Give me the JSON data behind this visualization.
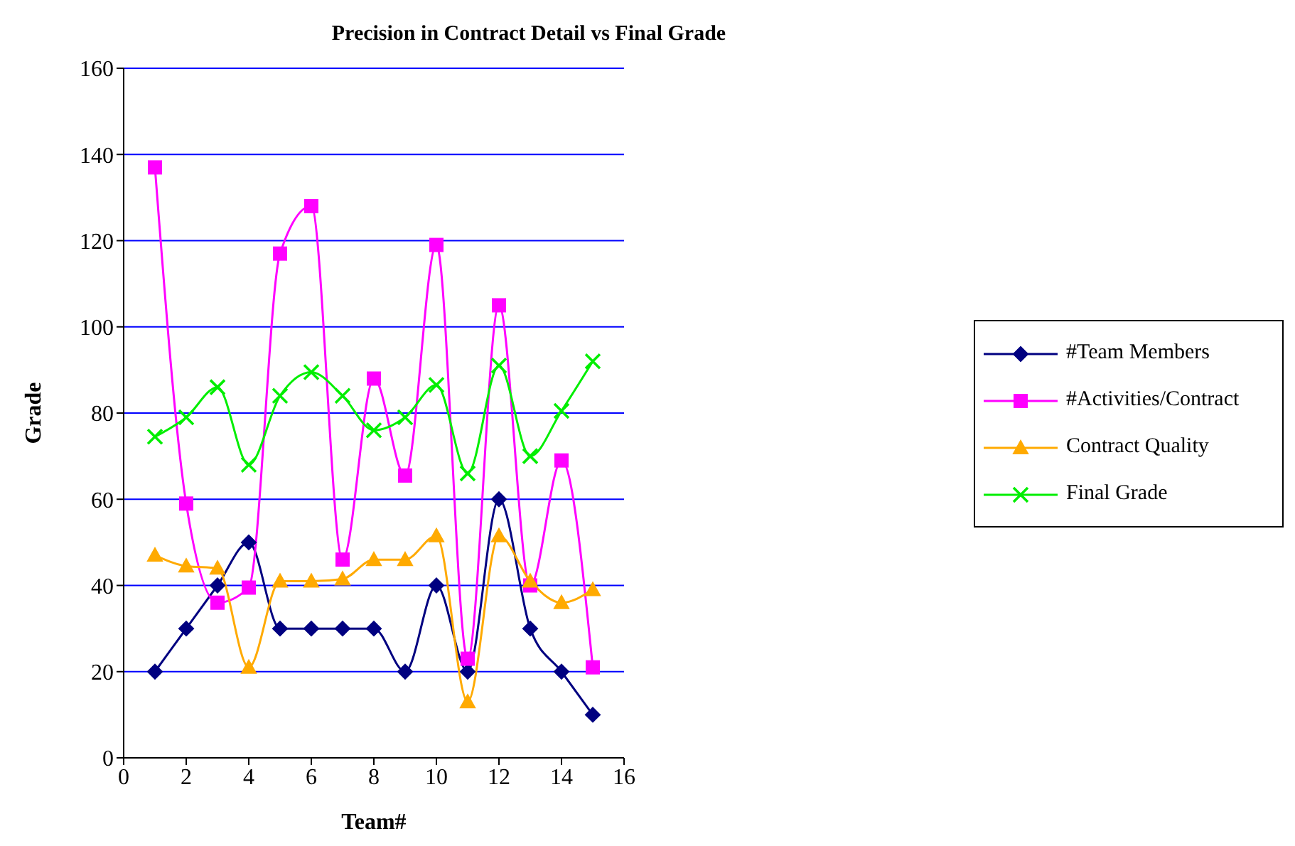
{
  "chart_data": {
    "type": "line",
    "title": "Precision in Contract Detail vs Final Grade",
    "xlabel": "Team#",
    "ylabel": "Grade",
    "x": [
      1,
      2,
      3,
      4,
      5,
      6,
      7,
      8,
      9,
      10,
      11,
      12,
      13,
      14,
      15
    ],
    "xlim": [
      0,
      16
    ],
    "xticks": [
      0,
      2,
      4,
      6,
      8,
      10,
      12,
      14,
      16
    ],
    "ylim": [
      0,
      160
    ],
    "yticks": [
      0,
      20,
      40,
      60,
      80,
      100,
      120,
      140,
      160
    ],
    "grid": "y",
    "legend": "right",
    "series": [
      {
        "name": "#Team Members",
        "color": "#000080",
        "marker": "diamond",
        "values": [
          20,
          30,
          40,
          50,
          30,
          30,
          30,
          30,
          20,
          40,
          20,
          60,
          30,
          20,
          10
        ]
      },
      {
        "name": "#Activities/Contract",
        "color": "#ff00ff",
        "marker": "square",
        "values": [
          137,
          59,
          36,
          39.5,
          117,
          128,
          46,
          88,
          65.5,
          119,
          23,
          105,
          40,
          69,
          21
        ]
      },
      {
        "name": "Contract Quality",
        "color": "#ffaa00",
        "marker": "triangle",
        "values": [
          47,
          44.5,
          44,
          21,
          41,
          41,
          41.5,
          46,
          46,
          51.5,
          13,
          51.5,
          41,
          36,
          39
        ]
      },
      {
        "name": "Final Grade",
        "color": "#00ee00",
        "marker": "cross",
        "values": [
          74.5,
          79,
          86,
          68,
          84,
          89.5,
          84,
          76,
          79,
          86.5,
          66,
          91,
          70,
          80.5,
          92
        ]
      }
    ]
  }
}
